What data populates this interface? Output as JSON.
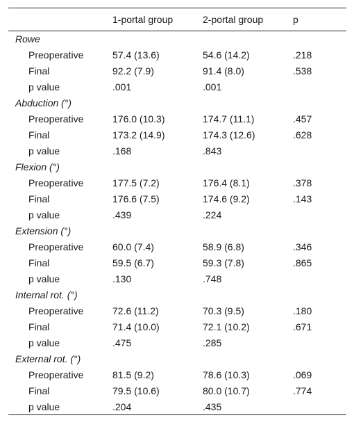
{
  "header": {
    "col0": "",
    "col1": "1-portal group",
    "col2": "2-portal group",
    "col3": "p"
  },
  "groups": [
    {
      "name": "Rowe",
      "rows": [
        {
          "label": "Preoperative",
          "g1": "57.4 (13.6)",
          "g2": "54.6 (14.2)",
          "p": ".218"
        },
        {
          "label": "Final",
          "g1": "92.2 (7.9)",
          "g2": "91.4 (8.0)",
          "p": ".538"
        },
        {
          "label": "p value",
          "g1": ".001",
          "g2": ".001",
          "p": ""
        }
      ]
    },
    {
      "name": "Abduction (°)",
      "rows": [
        {
          "label": "Preoperative",
          "g1": "176.0 (10.3)",
          "g2": "174.7 (11.1)",
          "p": ".457"
        },
        {
          "label": "Final",
          "g1": "173.2 (14.9)",
          "g2": "174.3 (12.6)",
          "p": ".628"
        },
        {
          "label": "p value",
          "g1": ".168",
          "g2": ".843",
          "p": ""
        }
      ]
    },
    {
      "name": "Flexion (°)",
      "rows": [
        {
          "label": "Preoperative",
          "g1": "177.5 (7.2)",
          "g2": "176.4 (8.1)",
          "p": ".378"
        },
        {
          "label": "Final",
          "g1": "176.6 (7.5)",
          "g2": "174.6 (9.2)",
          "p": ".143"
        },
        {
          "label": "p value",
          "g1": ".439",
          "g2": ".224",
          "p": ""
        }
      ]
    },
    {
      "name": "Extension (°)",
      "rows": [
        {
          "label": "Preoperative",
          "g1": "60.0 (7.4)",
          "g2": "58.9 (6.8)",
          "p": ".346"
        },
        {
          "label": "Final",
          "g1": "59.5 (6.7)",
          "g2": "59.3 (7.8)",
          "p": ".865"
        },
        {
          "label": "p value",
          "g1": ".130",
          "g2": ".748",
          "p": ""
        }
      ]
    },
    {
      "name": "Internal rot. (°)",
      "rows": [
        {
          "label": "Preoperative",
          "g1": "72.6 (11.2)",
          "g2": "70.3 (9.5)",
          "p": ".180"
        },
        {
          "label": "Final",
          "g1": "71.4 (10.0)",
          "g2": "72.1 (10.2)",
          "p": ".671"
        },
        {
          "label": "p value",
          "g1": ".475",
          "g2": ".285",
          "p": ""
        }
      ]
    },
    {
      "name": "External rot. (°)",
      "rows": [
        {
          "label": "Preoperative",
          "g1": "81.5 (9.2)",
          "g2": "78.6 (10.3)",
          "p": ".069"
        },
        {
          "label": "Final",
          "g1": "79.5 (10.6)",
          "g2": "80.0 (10.7)",
          "p": ".774"
        },
        {
          "label": "p value",
          "g1": ".204",
          "g2": ".435",
          "p": ""
        }
      ]
    }
  ]
}
